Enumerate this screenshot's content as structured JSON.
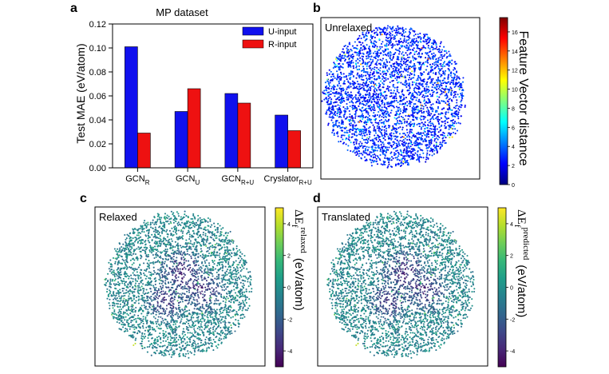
{
  "panels": {
    "a": "a",
    "b": "b",
    "c": "c",
    "d": "d"
  },
  "colors": {
    "u_input": "#1010ee",
    "r_input": "#ee1111",
    "jet": [
      "#00007f",
      "#0000ff",
      "#007fff",
      "#00ffff",
      "#7fff7f",
      "#ffff00",
      "#ff7f00",
      "#ff0000",
      "#7f0000"
    ],
    "viridis": [
      "#440154",
      "#482878",
      "#3e4989",
      "#31688e",
      "#26828e",
      "#1f9e89",
      "#35b779",
      "#6ece58",
      "#b5de2b",
      "#fde725"
    ]
  },
  "chart_data": [
    {
      "type": "bar",
      "title": "MP dataset",
      "ylabel": "Test MAE (eV/atom)",
      "xlabel": "",
      "ylim": [
        0,
        0.12
      ],
      "yticks": [
        "0.00",
        "0.02",
        "0.04",
        "0.06",
        "0.08",
        "0.10",
        "0.12"
      ],
      "categories": [
        {
          "base": "GCN",
          "sub": "R"
        },
        {
          "base": "GCN",
          "sub": "U"
        },
        {
          "base": "GCN",
          "sub": "R+U"
        },
        {
          "base": "Cryslator",
          "sub": "R+U"
        }
      ],
      "series": [
        {
          "name": "U-input",
          "values": [
            0.101,
            0.047,
            0.062,
            0.044
          ]
        },
        {
          "name": "R-input",
          "values": [
            0.029,
            0.066,
            0.054,
            0.031
          ]
        }
      ],
      "legend": "top-right",
      "grid": false
    },
    {
      "type": "scatter",
      "annotation": "Unrelaxed",
      "colorbar_label": "Feature Vector distance",
      "colorbar_ticks": [
        "0",
        "2",
        "4",
        "6",
        "8",
        "10",
        "12",
        "14",
        "16"
      ],
      "colorbar_range": [
        0,
        17.5
      ],
      "colormap": "jet"
    },
    {
      "type": "scatter",
      "annotation": "Relaxed",
      "colorbar_label": {
        "main": "ΔE",
        "sub": "f",
        "sup": "relaxed",
        "unit": "(eV/atom)"
      },
      "colorbar_ticks": [
        "-4",
        "-2",
        "0",
        "2",
        "4"
      ],
      "colorbar_range": [
        -5,
        5
      ],
      "colormap": "viridis"
    },
    {
      "type": "scatter",
      "annotation": "Translated",
      "colorbar_label": {
        "main": "ΔE",
        "sub": "f",
        "sup": "predicted",
        "unit": "(eV/atom)"
      },
      "colorbar_ticks": [
        "-4",
        "-2",
        "0",
        "2",
        "4"
      ],
      "colorbar_range": [
        -5,
        5
      ],
      "colormap": "viridis"
    }
  ]
}
